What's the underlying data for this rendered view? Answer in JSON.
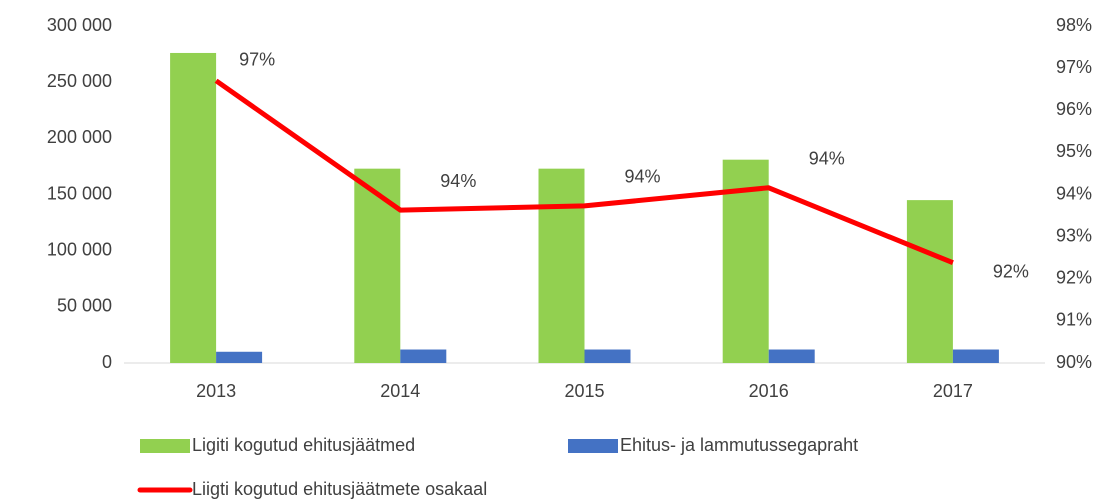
{
  "chart_data": {
    "type": "bar-line",
    "categories": [
      "2013",
      "2014",
      "2015",
      "2016",
      "2017"
    ],
    "series": [
      {
        "name": "Ligiti kogutud ehitusjäätmed",
        "color": "#92d050",
        "type": "bar",
        "values": [
          276000,
          173000,
          173000,
          181000,
          145000
        ]
      },
      {
        "name": "Ehitus- ja lammutussegapraht",
        "color": "#4472c4",
        "type": "bar",
        "values": [
          10000,
          12000,
          12000,
          12000,
          12000
        ]
      },
      {
        "name": "Liigti kogutud ehitusjäätmete osakaal",
        "color": "#ff0000",
        "type": "line",
        "axis": "y2",
        "values": [
          96.7,
          93.63,
          93.73,
          94.16,
          92.38
        ],
        "value_labels": [
          "97%",
          "94%",
          "94%",
          "94%",
          "92%"
        ]
      }
    ],
    "ylim": [
      0,
      300000
    ],
    "yticks": [
      0,
      {
        "value": 50000,
        "label": "50 000"
      },
      {
        "value": 100000,
        "label": "100 000"
      },
      {
        "value": 150000,
        "label": "150 000"
      },
      {
        "value": 200000,
        "label": "200 000"
      },
      {
        "value": 250000,
        "label": "250 000"
      },
      {
        "value": 300000,
        "label": "300 000"
      }
    ],
    "y2lim": [
      90,
      98
    ],
    "y2ticks": [
      {
        "value": 90,
        "label": "90%"
      },
      {
        "value": 91,
        "label": "91%"
      },
      {
        "value": 92,
        "label": "92%"
      },
      {
        "value": 93,
        "label": "93%"
      },
      {
        "value": 94,
        "label": "94%"
      },
      {
        "value": 95,
        "label": "95%"
      },
      {
        "value": 96,
        "label": "96%"
      },
      {
        "value": 97,
        "label": "97%"
      },
      {
        "value": 98,
        "label": "98%"
      }
    ],
    "grid": false
  }
}
